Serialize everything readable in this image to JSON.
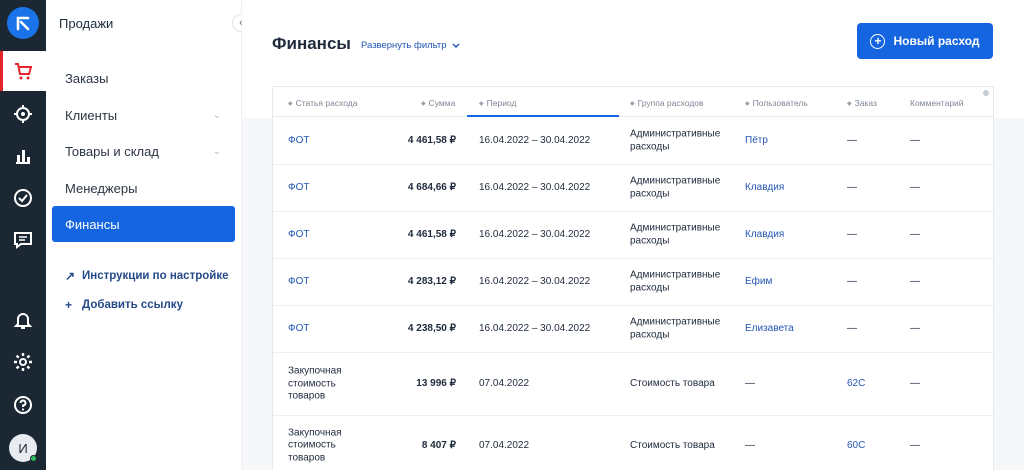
{
  "sidebar": {
    "section_title": "Продажи",
    "items": [
      {
        "label": "Заказы",
        "active": false,
        "expandable": false
      },
      {
        "label": "Клиенты",
        "active": false,
        "expandable": true
      },
      {
        "label": "Товары и склад",
        "active": false,
        "expandable": true
      },
      {
        "label": "Менеджеры",
        "active": false,
        "expandable": false
      },
      {
        "label": "Финансы",
        "active": true,
        "expandable": false
      }
    ],
    "links": [
      {
        "label": "Инструкции по настройке",
        "icon": "arrow-up-right-icon"
      },
      {
        "label": "Добавить ссылку",
        "icon": "plus-icon"
      }
    ]
  },
  "rail": {
    "icons": [
      "logo-icon",
      "cart-icon",
      "target-icon",
      "bar-chart-icon",
      "check-circle-icon",
      "chat-icon",
      "bell-icon",
      "gear-icon",
      "help-icon"
    ],
    "avatar_initial": "И"
  },
  "header": {
    "title": "Финансы",
    "filter_label": "Развернуть фильтр",
    "new_button_label": "Новый расход"
  },
  "table": {
    "columns": [
      "Статья расхода",
      "Сумма",
      "Период",
      "Группа расходов",
      "Пользователь",
      "Заказ",
      "Комментарий"
    ],
    "rows": [
      {
        "item": "ФОТ",
        "sum": "4 461,58 ₽",
        "period": "16.04.2022 – 30.04.2022",
        "group": "Административные расходы",
        "user": "Пётр",
        "order": "—",
        "comment": "—"
      },
      {
        "item": "ФОТ",
        "sum": "4 684,66 ₽",
        "period": "16.04.2022 – 30.04.2022",
        "group": "Административные расходы",
        "user": "Клавдия",
        "order": "—",
        "comment": "—"
      },
      {
        "item": "ФОТ",
        "sum": "4 461,58 ₽",
        "period": "16.04.2022 – 30.04.2022",
        "group": "Административные расходы",
        "user": "Клавдия",
        "order": "—",
        "comment": "—"
      },
      {
        "item": "ФОТ",
        "sum": "4 283,12 ₽",
        "period": "16.04.2022 – 30.04.2022",
        "group": "Административные расходы",
        "user": "Ефим",
        "order": "—",
        "comment": "—"
      },
      {
        "item": "ФОТ",
        "sum": "4 238,50 ₽",
        "period": "16.04.2022 – 30.04.2022",
        "group": "Административные расходы",
        "user": "Елизавета",
        "order": "—",
        "comment": "—"
      },
      {
        "item": "Закупочная стоимость товаров",
        "sum": "13 996 ₽",
        "period": "07.04.2022",
        "group": "Стоимость товара",
        "user": "—",
        "order": "62С",
        "comment": "—"
      },
      {
        "item": "Закупочная стоимость товаров",
        "sum": "8 407 ₽",
        "period": "07.04.2022",
        "group": "Стоимость товара",
        "user": "—",
        "order": "60С",
        "comment": "—"
      }
    ]
  },
  "colors": {
    "rail_bg": "#1b2733",
    "accent": "#1565e0",
    "link": "#2356b5",
    "active_marker": "#e5242b"
  }
}
